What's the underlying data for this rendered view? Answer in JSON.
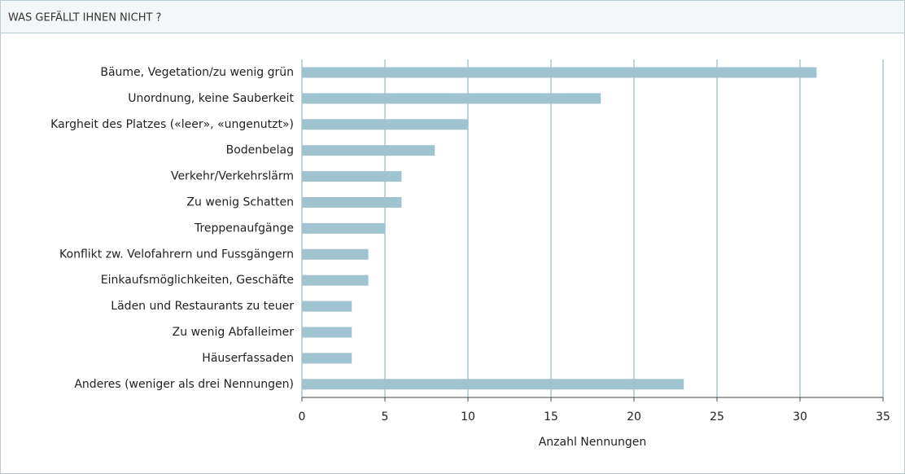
{
  "chart_data": {
    "type": "bar",
    "orientation": "horizontal",
    "title": "WAS GEFÄLLT IHNEN NICHT ?",
    "categories": [
      "Bäume, Vegetation/zu wenig grün",
      "Unordnung, keine Sauberkeit",
      "Kargheit des Platzes («leer», «ungenutzt»)",
      "Bodenbelag",
      "Verkehr/Verkehrslärm",
      "Zu wenig Schatten",
      "Treppenaufgänge",
      "Konflikt zw. Velofahrern und Fussgängern",
      "Einkaufsmöglichkeiten, Geschäfte",
      "Läden und Restaurants zu teuer",
      "Zu wenig Abfalleimer",
      "Häuserfassaden",
      "Anderes (weniger als drei Nennungen)"
    ],
    "values": [
      31,
      18,
      10,
      8,
      6,
      6,
      5,
      4,
      4,
      3,
      3,
      3,
      23
    ],
    "color": "#9fc4cf",
    "xlabel": "Anzahl Nennungen",
    "xlim": [
      0,
      35
    ],
    "xticks": [
      0,
      5,
      10,
      15,
      20,
      25,
      30,
      35
    ],
    "grid": true
  }
}
